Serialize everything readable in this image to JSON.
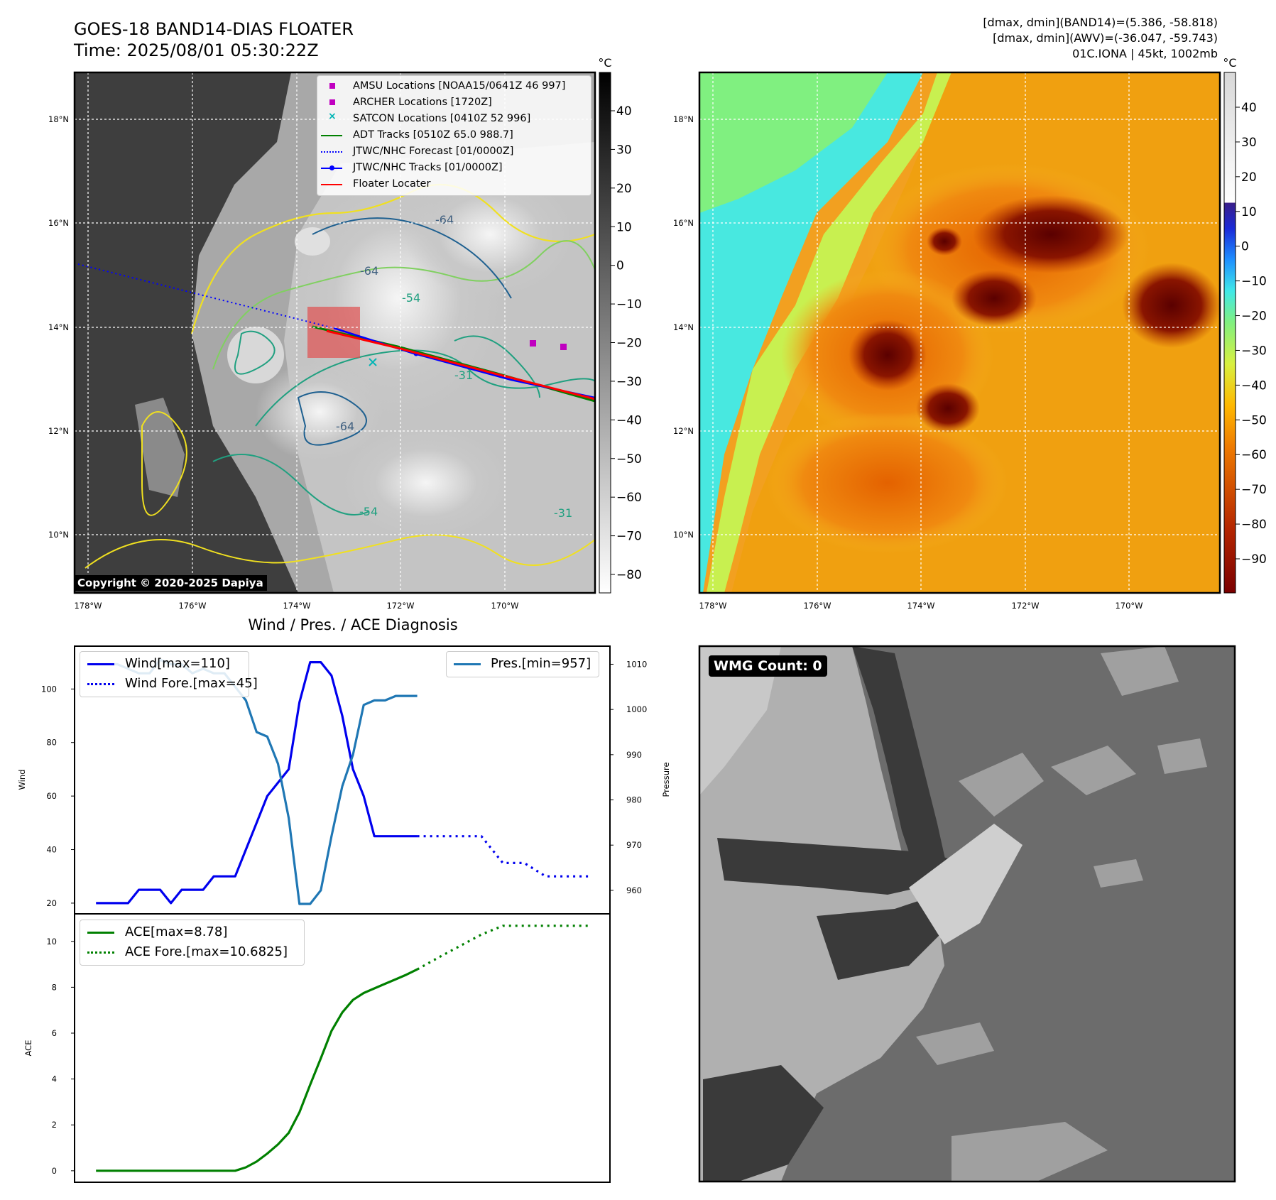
{
  "header": {
    "title_line1": "GOES-18 BAND14-DIAS FLOATER",
    "title_line2": "Time: 2025/08/01 05:30:22Z",
    "info_line1": "[dmax, dmin](BAND14)=(5.386, -58.818)",
    "info_line2": "[dmax, dmin](AWV)=(-36.047, -59.743)",
    "info_line3": "01C.IONA | 45kt, 1002mb"
  },
  "colors": {
    "wind": "#0000ee",
    "pressure": "#1f77b4",
    "ace": "#008000",
    "floater": "#ff0000",
    "adt": "#008000",
    "jtwc": "#0000ff",
    "amsu": "#c000c0",
    "satcon": "#00b5b5"
  },
  "maps": {
    "lon_ticks": [
      "178°W",
      "176°W",
      "174°W",
      "172°W",
      "170°W"
    ],
    "lat_ticks": [
      "18°N",
      "16°N",
      "14°N",
      "12°N",
      "10°N"
    ],
    "copyright": "Copyright © 2020-2025 Dapiya",
    "contour_labels": [
      "-64",
      "-64",
      "-64",
      "-54",
      "-54",
      "-31",
      "-31"
    ],
    "legend": [
      {
        "label": "AMSU Locations [NOAA15/0641Z 46 997]",
        "icon": "square-marker"
      },
      {
        "label": "ARCHER Locations [1720Z]",
        "icon": "square-marker"
      },
      {
        "label": "SATCON Locations [0410Z 52 996]",
        "icon": "x-marker"
      },
      {
        "label": "ADT Tracks [0510Z 65.0 988.7]",
        "icon": "solid-line"
      },
      {
        "label": "JTWC/NHC Forecast [01/0000Z]",
        "icon": "dotted-line"
      },
      {
        "label": "JTWC/NHC Tracks [01/0000Z]",
        "icon": "line-with-dot"
      },
      {
        "label": "Floater Locater",
        "icon": "solid-line"
      }
    ]
  },
  "colorbars": {
    "left": {
      "unit": "°C",
      "ticks": [
        "40",
        "30",
        "20",
        "10",
        "0",
        "−10",
        "−20",
        "−30",
        "−40",
        "−50",
        "−60",
        "−70",
        "−80"
      ]
    },
    "right": {
      "unit": "°C",
      "ticks": [
        "40",
        "30",
        "20",
        "10",
        "0",
        "−10",
        "−20",
        "−30",
        "−40",
        "−50",
        "−60",
        "−70",
        "−80",
        "−90"
      ]
    }
  },
  "wmg": {
    "label": "WMG Count: 0"
  },
  "chart_data": [
    {
      "type": "line",
      "title": "Wind / Pres. / ACE Diagnosis",
      "ylabel": "Wind",
      "y2label": "Pressure",
      "ylim": [
        16,
        116
      ],
      "y2lim": [
        954.8,
        1014
      ],
      "yticks": [
        20,
        40,
        60,
        80,
        100
      ],
      "y2ticks": [
        960,
        970,
        980,
        990,
        1000,
        1010
      ],
      "xlim": [
        -2,
        48
      ],
      "legend_left": [
        "Wind[max=110]",
        "Wind Fore.[max=45]"
      ],
      "legend_right": [
        "Pres.[min=957]"
      ],
      "series": [
        {
          "name": "Wind[max=110]",
          "axis": "left",
          "style": "solid",
          "x": [
            0,
            1,
            2,
            3,
            4,
            5,
            6,
            7,
            8,
            9,
            10,
            11,
            12,
            13,
            14,
            15,
            16,
            17,
            18,
            19,
            20,
            21,
            22,
            23,
            24,
            25,
            26,
            27,
            28,
            29,
            30
          ],
          "values": [
            20,
            20,
            20,
            20,
            25,
            25,
            25,
            20,
            25,
            25,
            25,
            30,
            30,
            30,
            40,
            50,
            60,
            65,
            70,
            95,
            110,
            110,
            105,
            90,
            70,
            60,
            45,
            45,
            45,
            45,
            45
          ]
        },
        {
          "name": "Wind Fore.[max=45]",
          "axis": "left",
          "style": "dotted",
          "x": [
            30,
            32,
            34,
            36,
            38,
            40,
            42,
            44,
            46
          ],
          "values": [
            45,
            45,
            45,
            45,
            35,
            35,
            30,
            30,
            30
          ]
        },
        {
          "name": "Pres.[min=957]",
          "axis": "right",
          "style": "solid",
          "x": [
            0,
            1,
            2,
            3,
            4,
            5,
            6,
            7,
            8,
            9,
            10,
            11,
            12,
            13,
            14,
            15,
            16,
            17,
            18,
            19,
            20,
            21,
            22,
            23,
            24,
            25,
            26,
            27,
            28,
            29,
            30
          ],
          "values": [
            1010,
            1010,
            1010,
            1009,
            1008,
            1008,
            1011,
            1010,
            1010,
            1008,
            1009,
            1008,
            1008,
            1005,
            1002,
            995,
            994,
            988,
            976,
            957,
            957,
            960,
            972,
            983,
            990,
            1001,
            1002,
            1002,
            1003,
            1003,
            1003
          ]
        }
      ]
    },
    {
      "type": "line",
      "ylabel": "ACE",
      "ylim": [
        -0.5,
        11.2
      ],
      "yticks": [
        0,
        2,
        4,
        6,
        8,
        10
      ],
      "xlim": [
        -2,
        48
      ],
      "legend": [
        "ACE[max=8.78]",
        "ACE Fore.[max=10.6825]"
      ],
      "series": [
        {
          "name": "ACE[max=8.78]",
          "style": "solid",
          "x": [
            0,
            1,
            2,
            3,
            4,
            5,
            6,
            7,
            8,
            9,
            10,
            11,
            12,
            13,
            14,
            15,
            16,
            17,
            18,
            19,
            20,
            21,
            22,
            23,
            24,
            25,
            26,
            27,
            28,
            29,
            30
          ],
          "values": [
            0,
            0,
            0,
            0,
            0,
            0,
            0,
            0,
            0,
            0,
            0,
            0,
            0,
            0,
            0.15,
            0.4,
            0.75,
            1.15,
            1.65,
            2.55,
            3.75,
            4.9,
            6.1,
            6.9,
            7.45,
            7.75,
            7.95,
            8.15,
            8.35,
            8.55,
            8.78
          ]
        },
        {
          "name": "ACE Fore.[max=10.6825]",
          "style": "dotted",
          "x": [
            30,
            32,
            34,
            36,
            38,
            40,
            42,
            44,
            46
          ],
          "values": [
            8.78,
            9.3,
            9.8,
            10.3,
            10.68,
            10.68,
            10.68,
            10.68,
            10.68
          ]
        }
      ]
    }
  ]
}
